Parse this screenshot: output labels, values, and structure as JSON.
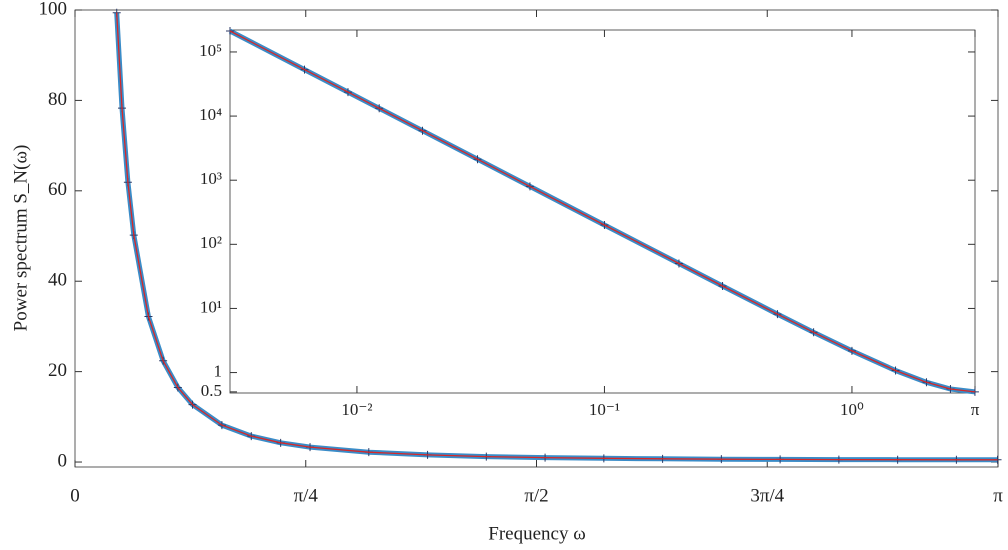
{
  "chart_data": [
    {
      "type": "line",
      "xlabel": "Frequency ω",
      "ylabel": "Power spectrum S_N(ω)",
      "xlim": [
        0,
        3.1416
      ],
      "ylim": [
        -1.1,
        100
      ],
      "xticks": [
        0,
        {
          "value": 0.7854,
          "label": "π/4"
        },
        {
          "value": 1.5708,
          "label": "π/2"
        },
        {
          "value": 2.3562,
          "label": "3π/4"
        },
        {
          "value": 3.1416,
          "label": "π"
        }
      ],
      "yticks": [
        0,
        20,
        40,
        60,
        80,
        100
      ],
      "x": [
        0.142,
        0.16,
        0.18,
        0.2,
        0.25,
        0.3,
        0.35,
        0.4,
        0.5,
        0.6,
        0.7,
        0.8,
        1.0,
        1.2,
        1.4,
        1.6,
        1.8,
        2.0,
        2.2,
        2.4,
        2.6,
        2.8,
        3.0,
        3.14
      ],
      "values": [
        99.4,
        78.3,
        61.9,
        50.2,
        32.2,
        22.4,
        16.5,
        12.7,
        8.17,
        5.73,
        4.25,
        3.3,
        2.18,
        1.57,
        1.2,
        0.972,
        0.815,
        0.706,
        0.63,
        0.576,
        0.539,
        0.515,
        0.503,
        0.5
      ],
      "color": "#3a8cc8",
      "line_color": "#d62728",
      "marker_color": "#2b3a67"
    },
    {
      "type": "line",
      "log_x": true,
      "log_y": true,
      "xlim": [
        0.00307,
        3.1416
      ],
      "ylim": [
        0.48,
        220000
      ],
      "xticks": [
        {
          "value": 0.01,
          "label": "10⁻²"
        },
        {
          "value": 0.1,
          "label": "10⁻¹"
        },
        {
          "value": 1,
          "label": "10⁰"
        },
        {
          "value": 3.1416,
          "label": "π"
        }
      ],
      "yticks": [
        0.5,
        1,
        {
          "value": 10,
          "label": "10¹"
        },
        {
          "value": 100,
          "label": "10²"
        },
        {
          "value": 1000,
          "label": "10³"
        },
        {
          "value": 10000,
          "label": "10⁴"
        },
        {
          "value": 100000,
          "label": "10⁵"
        }
      ],
      "x": [
        0.00307,
        0.00614,
        0.0092,
        0.0123,
        0.0184,
        0.0307,
        0.05,
        0.1,
        0.2,
        0.3,
        0.5,
        0.7,
        1,
        1.5,
        2,
        2.5,
        3.14
      ],
      "values": [
        212000,
        53050,
        23630,
        13220,
        5907,
        2122,
        800.2,
        200.2,
        50.2,
        22.4,
        8.17,
        4.25,
        2.18,
        1.076,
        0.706,
        0.555,
        0.5
      ],
      "color": "#3a8cc8",
      "line_color": "#d62728",
      "marker_color": "#2b3a67"
    }
  ]
}
